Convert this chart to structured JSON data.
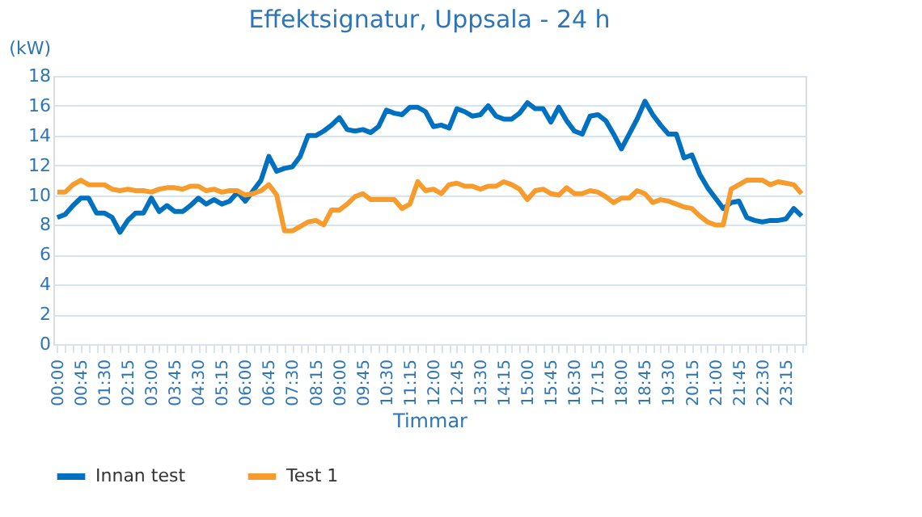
{
  "chart_data": {
    "type": "line",
    "title": "Effektsignatur, Uppsala - 24 h",
    "xlabel": "Timmar",
    "ylabel": "(kW)",
    "categories": [
      "00:00",
      null,
      null,
      "00:45",
      null,
      null,
      "01:30",
      null,
      null,
      "02:15",
      null,
      null,
      "03:00",
      null,
      null,
      "03:45",
      null,
      null,
      "04:30",
      null,
      null,
      "05:15",
      null,
      null,
      "06:00",
      null,
      null,
      "06:45",
      null,
      null,
      "07:30",
      null,
      null,
      "08:15",
      null,
      null,
      "09:00",
      null,
      null,
      "09:45",
      null,
      null,
      "10:30",
      null,
      null,
      "11:15",
      null,
      null,
      "12:00",
      null,
      null,
      "12:45",
      null,
      null,
      "13:30",
      null,
      null,
      "14:15",
      null,
      null,
      "15:00",
      null,
      null,
      "15:45",
      null,
      null,
      "16:30",
      null,
      null,
      "17:15",
      null,
      null,
      "18:00",
      null,
      null,
      "18:45",
      null,
      null,
      "19:30",
      null,
      null,
      "20:15",
      null,
      null,
      "21:00",
      null,
      null,
      "21:45",
      null,
      null,
      "22:30",
      null,
      null,
      "23:15",
      null,
      null
    ],
    "series": [
      {
        "name": "Innan test",
        "color": "#0070c0",
        "values": [
          8.5,
          8.7,
          9.3,
          9.8,
          9.8,
          8.8,
          8.8,
          8.5,
          7.5,
          8.3,
          8.8,
          8.8,
          9.8,
          8.9,
          9.3,
          8.9,
          8.9,
          9.3,
          9.8,
          9.4,
          9.7,
          9.4,
          9.6,
          10.2,
          9.6,
          10.3,
          11.0,
          12.6,
          11.6,
          11.8,
          11.9,
          12.6,
          14.0,
          14.0,
          14.3,
          14.7,
          15.2,
          14.4,
          14.3,
          14.4,
          14.2,
          14.6,
          15.7,
          15.5,
          15.4,
          15.9,
          15.9,
          15.6,
          14.6,
          14.7,
          14.5,
          15.8,
          15.6,
          15.3,
          15.4,
          16.0,
          15.3,
          15.1,
          15.1,
          15.5,
          16.2,
          15.8,
          15.8,
          14.9,
          15.9,
          15.0,
          14.3,
          14.1,
          15.3,
          15.4,
          15.0,
          14.1,
          13.1,
          14.1,
          15.1,
          16.3,
          15.4,
          14.7,
          14.1,
          14.1,
          12.5,
          12.7,
          11.4,
          10.5,
          9.8,
          9.1,
          9.5,
          9.6,
          8.5,
          8.3,
          8.2,
          8.3,
          8.3,
          8.4,
          9.1,
          8.6
        ]
      },
      {
        "name": "Test 1",
        "color": "#f79c2c",
        "values": [
          10.2,
          10.2,
          10.7,
          11.0,
          10.7,
          10.7,
          10.7,
          10.4,
          10.3,
          10.4,
          10.3,
          10.3,
          10.2,
          10.4,
          10.5,
          10.5,
          10.4,
          10.6,
          10.6,
          10.3,
          10.4,
          10.2,
          10.3,
          10.3,
          10.0,
          10.1,
          10.3,
          10.7,
          10.0,
          7.6,
          7.6,
          7.9,
          8.2,
          8.3,
          8.0,
          9.0,
          9.0,
          9.4,
          9.9,
          10.1,
          9.7,
          9.7,
          9.7,
          9.7,
          9.1,
          9.4,
          10.9,
          10.3,
          10.4,
          10.1,
          10.7,
          10.8,
          10.6,
          10.6,
          10.4,
          10.6,
          10.6,
          10.9,
          10.7,
          10.4,
          9.7,
          10.3,
          10.4,
          10.1,
          10.0,
          10.5,
          10.1,
          10.1,
          10.3,
          10.2,
          9.9,
          9.5,
          9.8,
          9.8,
          10.3,
          10.1,
          9.5,
          9.7,
          9.6,
          9.4,
          9.2,
          9.1,
          8.6,
          8.2,
          8.0,
          8.0,
          10.4,
          10.7,
          11.0,
          11.0,
          11.0,
          10.7,
          10.9,
          10.8,
          10.7,
          10.1
        ]
      }
    ],
    "ylim": [
      0,
      18
    ],
    "yticks": [
      0,
      2,
      4,
      6,
      8,
      10,
      12,
      14,
      16,
      18
    ],
    "grid": "y",
    "legend": "bottom"
  }
}
